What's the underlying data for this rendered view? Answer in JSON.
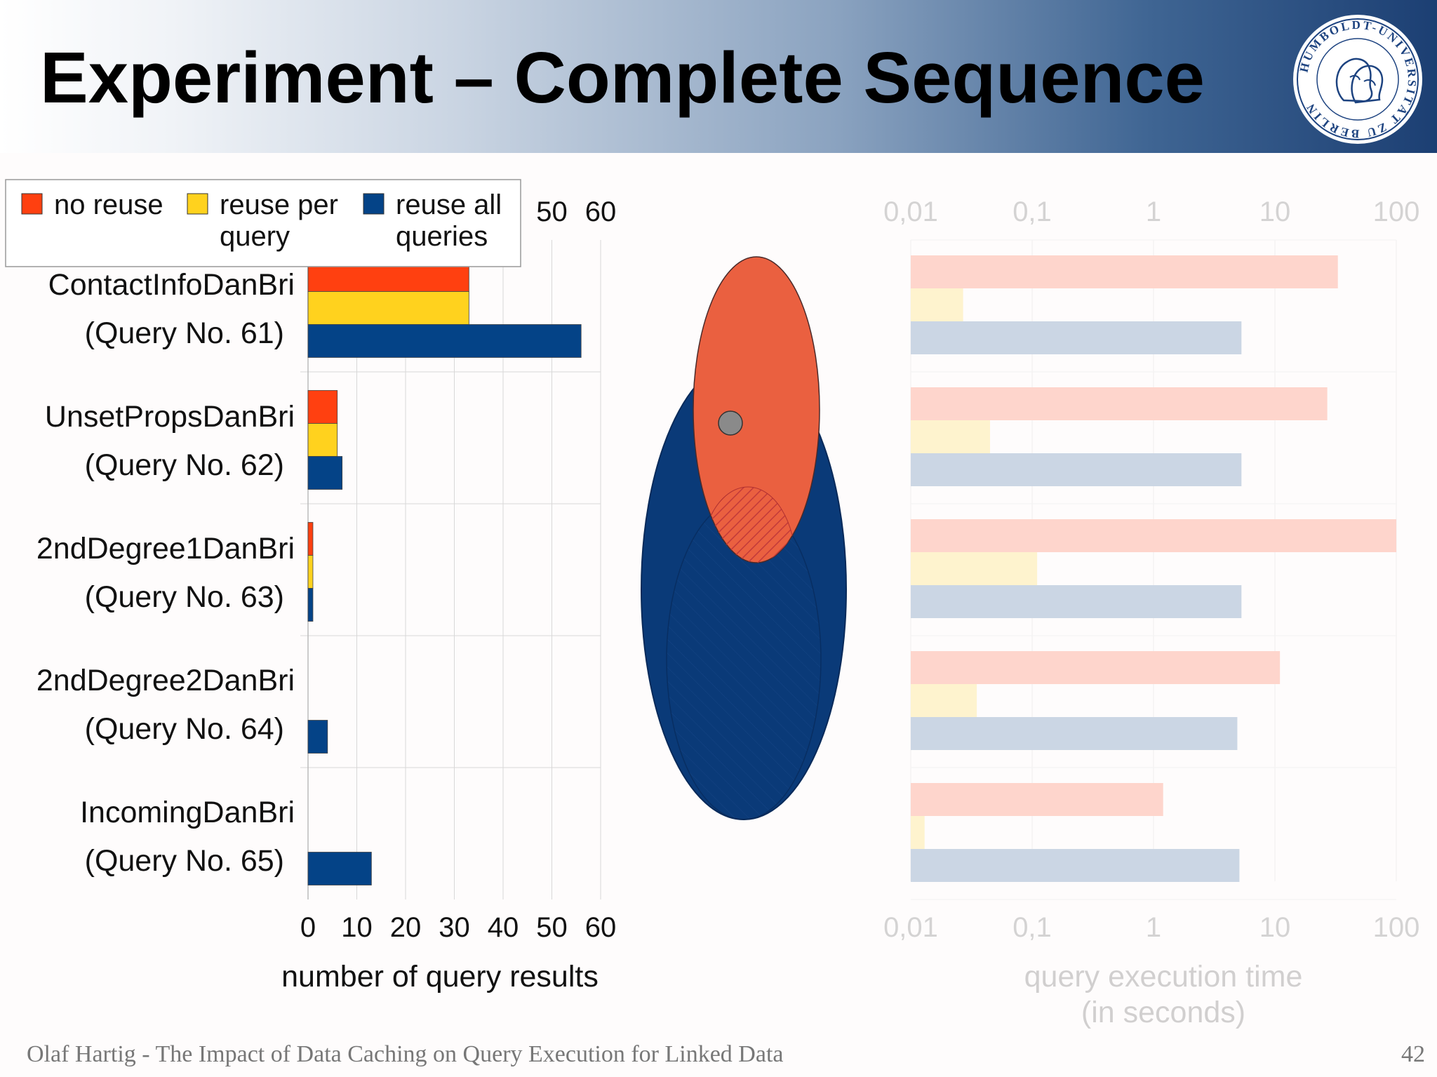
{
  "slide": {
    "title": "Experiment – Complete Sequence",
    "footer": "Olaf Hartig - The Impact of Data Caching on Query Execution for Linked Data",
    "page_number": "42",
    "logo_text": "HUMBOLDT-UNIVERSITÄT ZU BERLIN"
  },
  "chart_data": [
    {
      "type": "bar",
      "orientation": "horizontal",
      "categories": [
        {
          "name": "ContactInfoDanBri",
          "query": "(Query No. 61)"
        },
        {
          "name": "UnsetPropsDanBri",
          "query": "(Query No. 62)"
        },
        {
          "name": "2ndDegree1DanBri",
          "query": "(Query No. 63)"
        },
        {
          "name": "2ndDegree2DanBri",
          "query": "(Query No. 64)"
        },
        {
          "name": "IncomingDanBri",
          "query": "(Query No. 65)"
        }
      ],
      "series": [
        {
          "name": "no reuse",
          "color": "#ff4010",
          "values": [
            33,
            6,
            1,
            0,
            0
          ]
        },
        {
          "name": "reuse per query",
          "color": "#ffd21e",
          "values": [
            33,
            6,
            1,
            0,
            0
          ]
        },
        {
          "name": "reuse all queries",
          "color": "#044387",
          "values": [
            56,
            7,
            1,
            4,
            13
          ]
        }
      ],
      "xlabel": "number of query results",
      "xticks": [
        "0",
        "10",
        "20",
        "30",
        "40",
        "50",
        "60"
      ],
      "xlim": [
        0,
        60
      ],
      "top_ticks_visible": [
        "50",
        "60"
      ],
      "legend": {
        "placement": "top-left",
        "items": [
          {
            "line1": "no reuse",
            "line2": "",
            "color": "#ff4010"
          },
          {
            "line1": "reuse per",
            "line2": "query",
            "color": "#ffd21e"
          },
          {
            "line1": "reuse all",
            "line2": "queries",
            "color": "#044387"
          }
        ]
      },
      "grid": true
    },
    {
      "type": "bar",
      "orientation": "horizontal",
      "scale": "log",
      "faded": true,
      "series": [
        {
          "name": "no reuse",
          "color": "#ff4010",
          "values": [
            33,
            27,
            100,
            11,
            1.2
          ]
        },
        {
          "name": "reuse per query",
          "color": "#ffd21e",
          "values": [
            0.027,
            0.045,
            0.11,
            0.035,
            0.013
          ]
        },
        {
          "name": "reuse all queries",
          "color": "#044387",
          "values": [
            5.3,
            5.3,
            5.3,
            4.9,
            5.1
          ]
        }
      ],
      "xlabel_line1": "query execution time",
      "xlabel_line2": "(in seconds)",
      "xticks": [
        "0,01",
        "0,1",
        "1",
        "10",
        "100"
      ],
      "xlim": [
        0.01,
        100
      ],
      "grid": true
    }
  ],
  "venn": {
    "outer_color": "#0a3a78",
    "inner_color": "#ea6040",
    "point_color": "#8a8a8a"
  }
}
